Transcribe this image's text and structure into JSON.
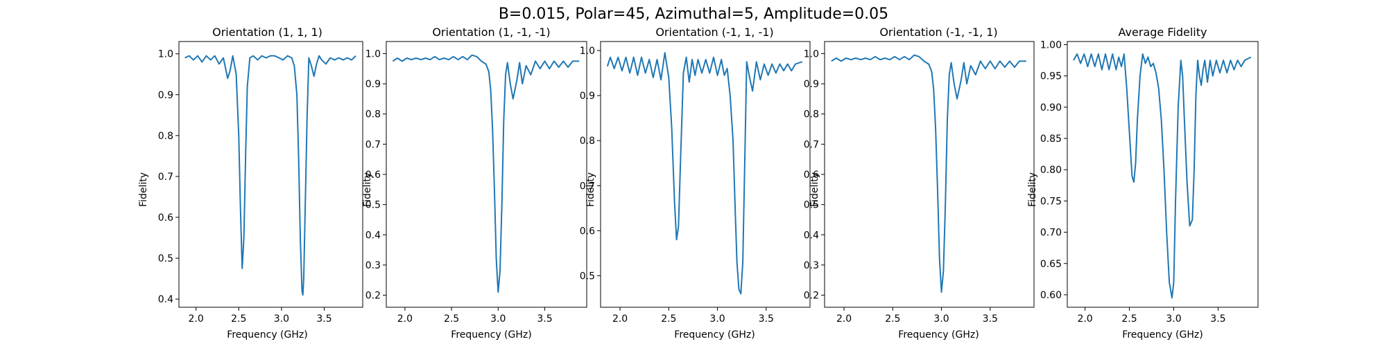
{
  "figure": {
    "title": "B=0.015, Polar=45, Azimuthal=5, Amplitude=0.05"
  },
  "chart_data": [
    {
      "type": "line",
      "title": "Orientation (1, 1, 1)",
      "xlabel": "Frequency (GHz)",
      "ylabel": "Fidelity",
      "xlim": [
        1.8,
        3.95
      ],
      "ylim": [
        0.38,
        1.03
      ],
      "xticks": [
        2.0,
        2.5,
        3.0,
        3.5
      ],
      "xtick_labels": [
        "2.0",
        "2.5",
        "3.0",
        "3.5"
      ],
      "yticks": [
        0.4,
        0.5,
        0.6,
        0.7,
        0.8,
        0.9,
        1.0
      ],
      "ytick_labels": [
        "0.4",
        "0.5",
        "0.6",
        "0.7",
        "0.8",
        "0.9",
        "1.0"
      ],
      "grid": false,
      "series": [
        {
          "color": "#1f77b4",
          "x": [
            1.87,
            1.92,
            1.97,
            2.02,
            2.07,
            2.12,
            2.17,
            2.22,
            2.27,
            2.32,
            2.37,
            2.4,
            2.43,
            2.47,
            2.5,
            2.52,
            2.54,
            2.56,
            2.58,
            2.6,
            2.63,
            2.67,
            2.72,
            2.77,
            2.82,
            2.87,
            2.92,
            2.97,
            3.02,
            3.07,
            3.12,
            3.15,
            3.18,
            3.2,
            3.22,
            3.24,
            3.25,
            3.26,
            3.28,
            3.3,
            3.32,
            3.35,
            3.38,
            3.41,
            3.44,
            3.47,
            3.52,
            3.57,
            3.62,
            3.67,
            3.72,
            3.77,
            3.82,
            3.87
          ],
          "y": [
            0.99,
            0.995,
            0.985,
            0.995,
            0.98,
            0.995,
            0.985,
            0.995,
            0.975,
            0.99,
            0.94,
            0.96,
            0.995,
            0.95,
            0.8,
            0.62,
            0.475,
            0.55,
            0.75,
            0.92,
            0.99,
            0.995,
            0.985,
            0.995,
            0.99,
            0.995,
            0.995,
            0.99,
            0.985,
            0.995,
            0.99,
            0.97,
            0.9,
            0.75,
            0.55,
            0.42,
            0.41,
            0.45,
            0.65,
            0.85,
            0.99,
            0.97,
            0.945,
            0.975,
            0.995,
            0.985,
            0.975,
            0.99,
            0.985,
            0.99,
            0.985,
            0.99,
            0.985,
            0.995
          ]
        }
      ]
    },
    {
      "type": "line",
      "title": "Orientation (1, -1, -1)",
      "xlabel": "Frequency (GHz)",
      "ylabel": "Fidelity",
      "xlim": [
        1.8,
        3.95
      ],
      "ylim": [
        0.16,
        1.04
      ],
      "xticks": [
        2.0,
        2.5,
        3.0,
        3.5
      ],
      "xtick_labels": [
        "2.0",
        "2.5",
        "3.0",
        "3.5"
      ],
      "yticks": [
        0.2,
        0.3,
        0.4,
        0.5,
        0.6,
        0.7,
        0.8,
        0.9,
        1.0
      ],
      "ytick_labels": [
        "0.2",
        "0.3",
        "0.4",
        "0.5",
        "0.6",
        "0.7",
        "0.8",
        "0.9",
        "1.0"
      ],
      "grid": false,
      "series": [
        {
          "color": "#1f77b4",
          "x": [
            1.87,
            1.92,
            1.97,
            2.02,
            2.07,
            2.12,
            2.17,
            2.22,
            2.27,
            2.32,
            2.37,
            2.42,
            2.47,
            2.52,
            2.57,
            2.62,
            2.67,
            2.72,
            2.77,
            2.82,
            2.87,
            2.9,
            2.92,
            2.94,
            2.96,
            2.98,
            3.0,
            3.02,
            3.04,
            3.06,
            3.08,
            3.1,
            3.13,
            3.16,
            3.2,
            3.23,
            3.26,
            3.3,
            3.35,
            3.4,
            3.45,
            3.5,
            3.55,
            3.6,
            3.65,
            3.7,
            3.75,
            3.8,
            3.87
          ],
          "y": [
            0.975,
            0.985,
            0.975,
            0.985,
            0.98,
            0.985,
            0.98,
            0.985,
            0.98,
            0.99,
            0.98,
            0.985,
            0.98,
            0.99,
            0.98,
            0.99,
            0.98,
            0.995,
            0.99,
            0.975,
            0.965,
            0.94,
            0.88,
            0.75,
            0.55,
            0.32,
            0.21,
            0.28,
            0.5,
            0.78,
            0.93,
            0.97,
            0.9,
            0.85,
            0.91,
            0.97,
            0.9,
            0.96,
            0.93,
            0.975,
            0.95,
            0.975,
            0.95,
            0.975,
            0.955,
            0.975,
            0.955,
            0.975,
            0.975
          ]
        }
      ]
    },
    {
      "type": "line",
      "title": "Orientation (-1, 1, -1)",
      "xlabel": "Frequency (GHz)",
      "ylabel": "Fidelity",
      "xlim": [
        1.8,
        3.95
      ],
      "ylim": [
        0.43,
        1.02
      ],
      "xticks": [
        2.0,
        2.5,
        3.0,
        3.5
      ],
      "xtick_labels": [
        "2.0",
        "2.5",
        "3.0",
        "3.5"
      ],
      "yticks": [
        0.5,
        0.6,
        0.7,
        0.8,
        0.9,
        1.0
      ],
      "ytick_labels": [
        "0.5",
        "0.6",
        "0.7",
        "0.8",
        "0.9",
        "1.0"
      ],
      "grid": false,
      "series": [
        {
          "color": "#1f77b4",
          "x": [
            1.87,
            1.9,
            1.94,
            1.98,
            2.02,
            2.06,
            2.1,
            2.14,
            2.18,
            2.22,
            2.26,
            2.3,
            2.34,
            2.38,
            2.42,
            2.46,
            2.5,
            2.53,
            2.56,
            2.58,
            2.6,
            2.62,
            2.65,
            2.68,
            2.71,
            2.74,
            2.77,
            2.8,
            2.84,
            2.88,
            2.92,
            2.96,
            3.0,
            3.04,
            3.07,
            3.1,
            3.13,
            3.16,
            3.18,
            3.2,
            3.22,
            3.24,
            3.26,
            3.28,
            3.3,
            3.33,
            3.36,
            3.4,
            3.44,
            3.48,
            3.52,
            3.56,
            3.6,
            3.64,
            3.68,
            3.72,
            3.76,
            3.8,
            3.87
          ],
          "y": [
            0.965,
            0.985,
            0.96,
            0.985,
            0.955,
            0.985,
            0.95,
            0.985,
            0.945,
            0.985,
            0.95,
            0.98,
            0.94,
            0.98,
            0.935,
            0.995,
            0.94,
            0.83,
            0.66,
            0.58,
            0.61,
            0.75,
            0.95,
            0.985,
            0.93,
            0.98,
            0.945,
            0.98,
            0.95,
            0.98,
            0.95,
            0.985,
            0.945,
            0.98,
            0.945,
            0.96,
            0.9,
            0.8,
            0.66,
            0.53,
            0.47,
            0.46,
            0.53,
            0.75,
            0.975,
            0.94,
            0.91,
            0.975,
            0.935,
            0.97,
            0.945,
            0.97,
            0.95,
            0.97,
            0.955,
            0.97,
            0.955,
            0.97,
            0.975
          ]
        }
      ]
    },
    {
      "type": "line",
      "title": "Orientation (-1, -1, 1)",
      "xlabel": "Frequency (GHz)",
      "ylabel": "Fidelity",
      "xlim": [
        1.8,
        3.95
      ],
      "ylim": [
        0.16,
        1.04
      ],
      "xticks": [
        2.0,
        2.5,
        3.0,
        3.5
      ],
      "xtick_labels": [
        "2.0",
        "2.5",
        "3.0",
        "3.5"
      ],
      "yticks": [
        0.2,
        0.3,
        0.4,
        0.5,
        0.6,
        0.7,
        0.8,
        0.9,
        1.0
      ],
      "ytick_labels": [
        "0.2",
        "0.3",
        "0.4",
        "0.5",
        "0.6",
        "0.7",
        "0.8",
        "0.9",
        "1.0"
      ],
      "grid": false,
      "series": [
        {
          "color": "#1f77b4",
          "x": [
            1.87,
            1.92,
            1.97,
            2.02,
            2.07,
            2.12,
            2.17,
            2.22,
            2.27,
            2.32,
            2.37,
            2.42,
            2.47,
            2.52,
            2.57,
            2.62,
            2.67,
            2.72,
            2.77,
            2.82,
            2.87,
            2.9,
            2.92,
            2.94,
            2.96,
            2.98,
            3.0,
            3.02,
            3.04,
            3.06,
            3.08,
            3.1,
            3.13,
            3.16,
            3.2,
            3.23,
            3.26,
            3.3,
            3.35,
            3.4,
            3.45,
            3.5,
            3.55,
            3.6,
            3.65,
            3.7,
            3.75,
            3.8,
            3.87
          ],
          "y": [
            0.975,
            0.985,
            0.975,
            0.985,
            0.98,
            0.985,
            0.98,
            0.985,
            0.98,
            0.99,
            0.98,
            0.985,
            0.98,
            0.99,
            0.98,
            0.99,
            0.98,
            0.995,
            0.99,
            0.975,
            0.965,
            0.94,
            0.88,
            0.75,
            0.55,
            0.32,
            0.21,
            0.28,
            0.5,
            0.78,
            0.93,
            0.97,
            0.9,
            0.85,
            0.91,
            0.97,
            0.9,
            0.96,
            0.93,
            0.975,
            0.95,
            0.975,
            0.95,
            0.975,
            0.955,
            0.975,
            0.955,
            0.975,
            0.975
          ]
        }
      ]
    },
    {
      "type": "line",
      "title": "Average Fidelity",
      "xlabel": "Frequency (GHz)",
      "ylabel": "Fidelity",
      "xlim": [
        1.8,
        3.95
      ],
      "ylim": [
        0.58,
        1.005
      ],
      "xticks": [
        2.0,
        2.5,
        3.0,
        3.5
      ],
      "xtick_labels": [
        "2.0",
        "2.5",
        "3.0",
        "3.5"
      ],
      "yticks": [
        0.6,
        0.65,
        0.7,
        0.75,
        0.8,
        0.85,
        0.9,
        0.95,
        1.0
      ],
      "ytick_labels": [
        "0.60",
        "0.65",
        "0.70",
        "0.75",
        "0.80",
        "0.85",
        "0.90",
        "0.95",
        "1.00"
      ],
      "grid": false,
      "series": [
        {
          "color": "#1f77b4",
          "x": [
            1.87,
            1.91,
            1.95,
            1.99,
            2.03,
            2.07,
            2.11,
            2.15,
            2.19,
            2.23,
            2.27,
            2.31,
            2.35,
            2.38,
            2.41,
            2.44,
            2.47,
            2.5,
            2.53,
            2.55,
            2.57,
            2.59,
            2.62,
            2.65,
            2.68,
            2.71,
            2.74,
            2.77,
            2.8,
            2.83,
            2.86,
            2.89,
            2.92,
            2.95,
            2.98,
            3.0,
            3.02,
            3.05,
            3.08,
            3.1,
            3.12,
            3.15,
            3.18,
            3.21,
            3.23,
            3.25,
            3.27,
            3.29,
            3.31,
            3.33,
            3.35,
            3.38,
            3.41,
            3.44,
            3.48,
            3.52,
            3.56,
            3.6,
            3.64,
            3.68,
            3.72,
            3.76,
            3.8,
            3.87
          ],
          "y": [
            0.975,
            0.985,
            0.97,
            0.985,
            0.965,
            0.985,
            0.965,
            0.985,
            0.96,
            0.985,
            0.96,
            0.985,
            0.96,
            0.98,
            0.965,
            0.985,
            0.93,
            0.86,
            0.79,
            0.78,
            0.81,
            0.88,
            0.95,
            0.985,
            0.97,
            0.98,
            0.965,
            0.97,
            0.955,
            0.93,
            0.88,
            0.8,
            0.7,
            0.62,
            0.595,
            0.62,
            0.75,
            0.9,
            0.975,
            0.95,
            0.88,
            0.78,
            0.71,
            0.72,
            0.8,
            0.92,
            0.975,
            0.95,
            0.935,
            0.96,
            0.975,
            0.94,
            0.975,
            0.95,
            0.975,
            0.955,
            0.975,
            0.955,
            0.975,
            0.96,
            0.975,
            0.965,
            0.975,
            0.98
          ]
        }
      ]
    }
  ]
}
